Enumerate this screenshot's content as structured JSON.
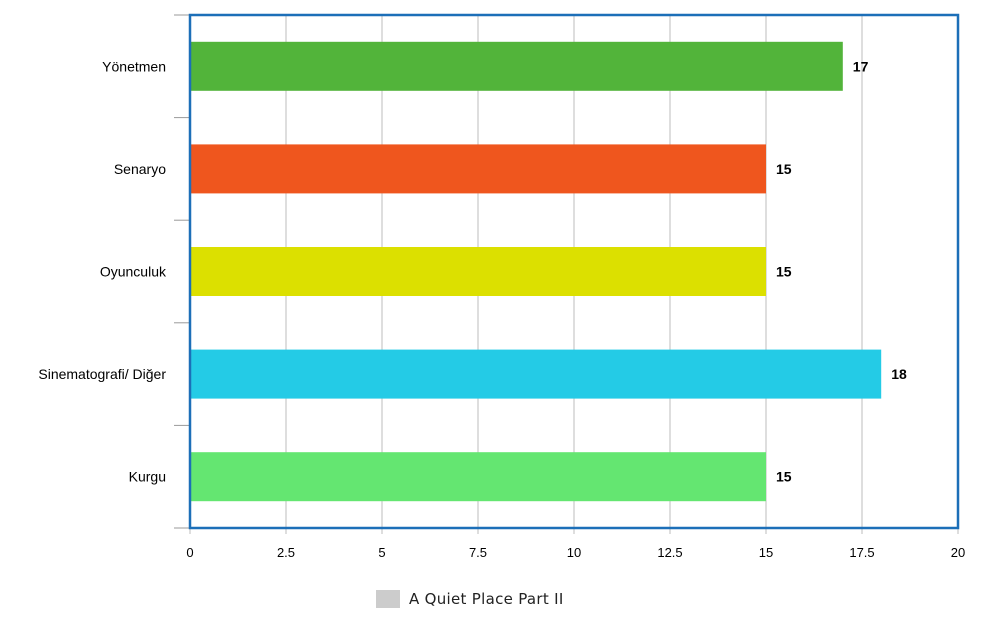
{
  "chart_data": {
    "type": "bar",
    "orientation": "horizontal",
    "categories": [
      "Yönetmen",
      "Senaryo",
      "Oyunculuk",
      "Sinematografi/ Diğer",
      "Kurgu"
    ],
    "series": [
      {
        "name": "A Quiet Place Part II",
        "values": [
          17,
          15,
          15,
          18,
          15
        ]
      }
    ],
    "bar_colors": [
      "#52b43a",
      "#ef561e",
      "#dce000",
      "#24cbe6",
      "#64e671"
    ],
    "data_labels": [
      "17",
      "15",
      "15",
      "18",
      "15"
    ],
    "xlim": [
      0,
      20
    ],
    "x_ticks": [
      0,
      2.5,
      5,
      7.5,
      10,
      12.5,
      15,
      17.5,
      20
    ],
    "x_tick_labels": [
      "0",
      "2.5",
      "5",
      "7.5",
      "10",
      "12.5",
      "15",
      "17.5",
      "20"
    ],
    "grid": "vertical",
    "legend": {
      "position": "bottom",
      "label": "A Quiet Place Part II",
      "swatch_color": "#cccccc"
    },
    "frame_color": "#1c6fb8"
  }
}
